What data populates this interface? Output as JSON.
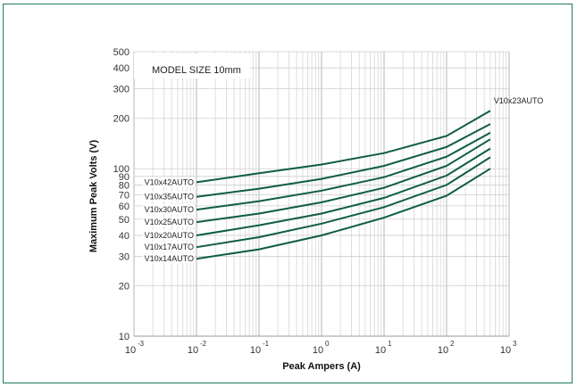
{
  "chart_data": {
    "type": "line",
    "title": "",
    "annotation": "MODEL SIZE 10mm",
    "xlabel": "Peak Ampers (A)",
    "ylabel": "Maximum Peak Volts (V)",
    "x_scale": "log",
    "y_scale": "log",
    "xlim": [
      0.001,
      1000
    ],
    "ylim": [
      10,
      500
    ],
    "grid": true,
    "x_ticks": [
      {
        "value": 0.001,
        "base": "10",
        "exp": "-3"
      },
      {
        "value": 0.01,
        "base": "10",
        "exp": "-2"
      },
      {
        "value": 0.1,
        "base": "10",
        "exp": "-1"
      },
      {
        "value": 1,
        "base": "10",
        "exp": "0"
      },
      {
        "value": 10,
        "base": "10",
        "exp": "1"
      },
      {
        "value": 100,
        "base": "10",
        "exp": "2"
      },
      {
        "value": 1000,
        "base": "10",
        "exp": "3"
      }
    ],
    "y_ticks": [
      {
        "value": 10,
        "label": "10"
      },
      {
        "value": 20,
        "label": "20"
      },
      {
        "value": 30,
        "label": "30"
      },
      {
        "value": 40,
        "label": "40"
      },
      {
        "value": 50,
        "label": "50"
      },
      {
        "value": 60,
        "label": "60"
      },
      {
        "value": 70,
        "label": "70"
      },
      {
        "value": 80,
        "label": "80"
      },
      {
        "value": 90,
        "label": "90"
      },
      {
        "value": 100,
        "label": "100"
      },
      {
        "value": 200,
        "label": "200"
      },
      {
        "value": 300,
        "label": "300"
      },
      {
        "value": 400,
        "label": "400"
      },
      {
        "value": 500,
        "label": "500"
      }
    ],
    "x": [
      0.01,
      0.1,
      1,
      10,
      100,
      500
    ],
    "series": [
      {
        "name": "V10x14AUTO",
        "label_side": "left",
        "values": [
          29,
          33,
          40,
          51,
          69,
          100
        ]
      },
      {
        "name": "V10x17AUTO",
        "label_side": "left",
        "values": [
          34,
          39,
          47,
          59,
          80,
          117
        ]
      },
      {
        "name": "V10x20AUTO",
        "label_side": "left",
        "values": [
          40,
          46,
          54,
          67,
          91,
          132
        ]
      },
      {
        "name": "V10x25AUTO",
        "label_side": "left",
        "values": [
          48,
          54,
          63,
          77,
          104,
          150
        ]
      },
      {
        "name": "V10x30AUTO",
        "label_side": "left",
        "values": [
          57,
          64,
          74,
          89,
          118,
          164
        ]
      },
      {
        "name": "V10x35AUTO",
        "label_side": "left",
        "values": [
          68,
          76,
          87,
          104,
          135,
          185
        ]
      },
      {
        "name": "V10x42AUTO",
        "label_side": "left",
        "values": [
          83,
          94,
          106,
          124,
          157,
          222
        ]
      },
      {
        "name": "V10x23AUTO",
        "label_side": "right",
        "values": [
          null,
          null,
          null,
          null,
          null,
          255
        ]
      }
    ],
    "line_color": "#0f5c44"
  }
}
